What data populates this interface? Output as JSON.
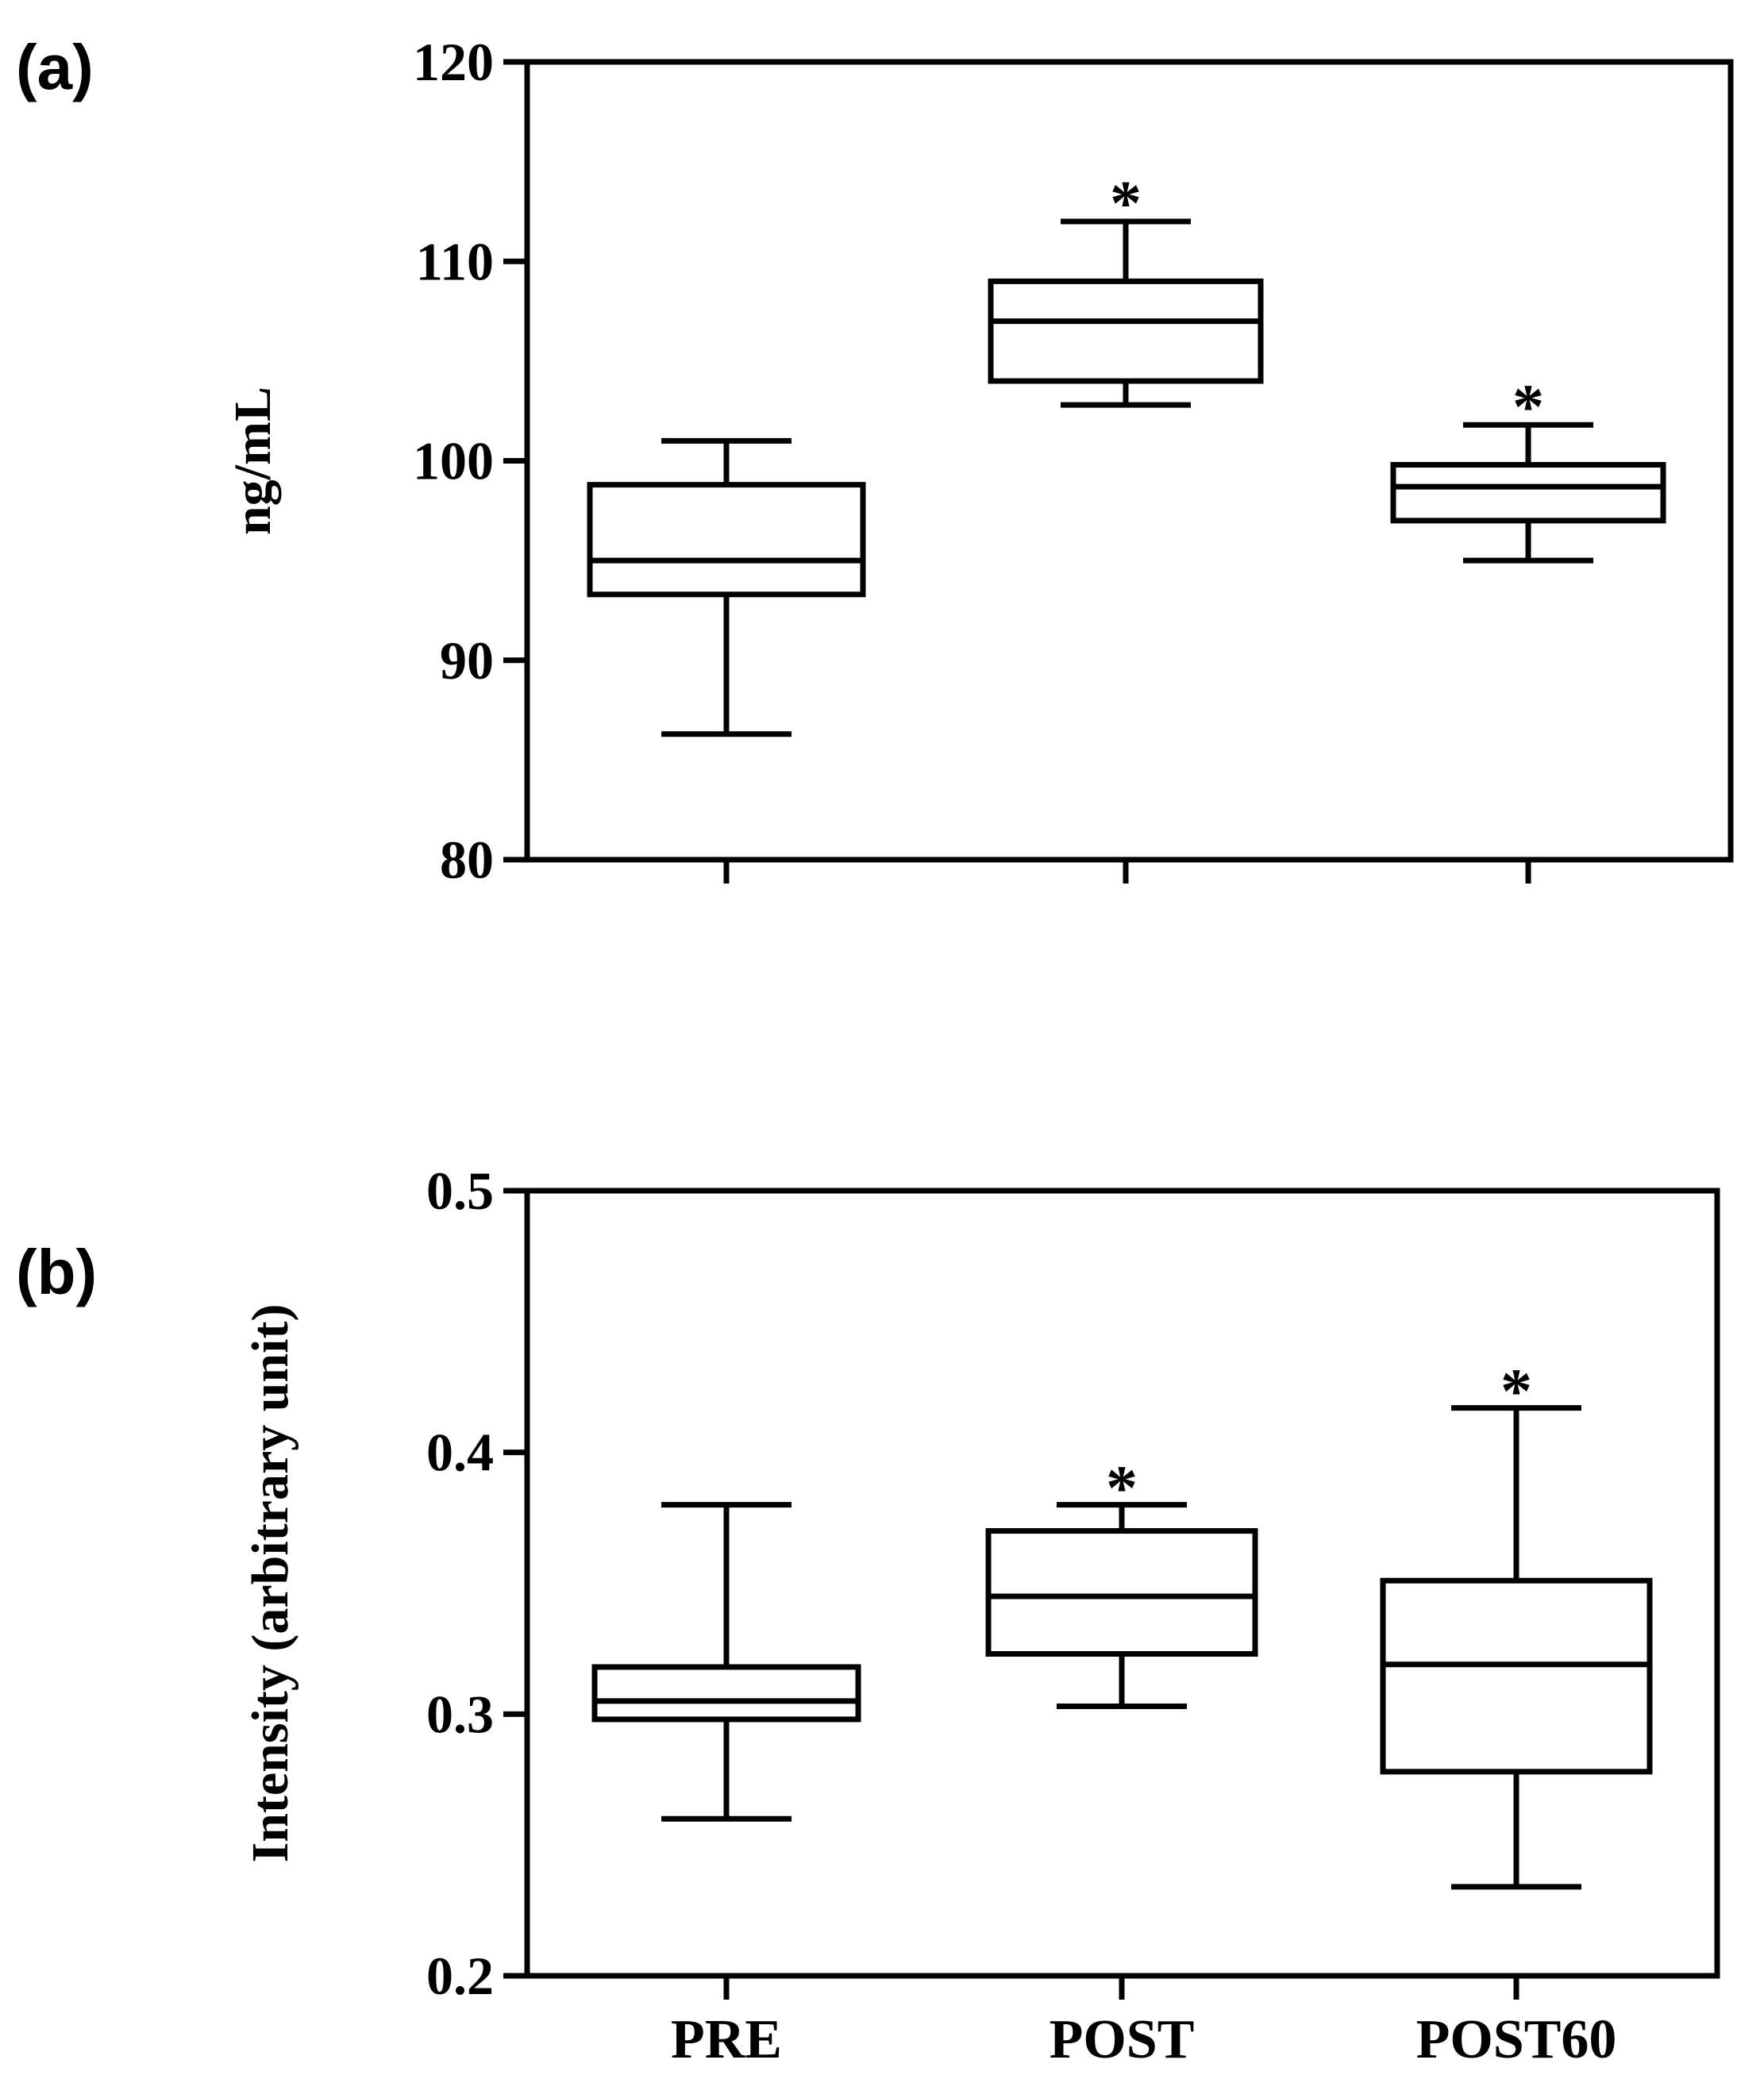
{
  "chart_data": [
    {
      "panel_label": "(a)",
      "type": "boxplot",
      "ylabel": "ng/mL",
      "xlabel": "",
      "ylim": [
        80,
        120
      ],
      "yticks": [
        80,
        90,
        100,
        110,
        120
      ],
      "categories": [
        "PRE",
        "POST",
        "POST60"
      ],
      "show_category_labels": false,
      "grid": false,
      "boxes": [
        {
          "category": "PRE",
          "whisker_low": 86.3,
          "q1": 93.3,
          "median": 95.0,
          "q3": 98.8,
          "whisker_high": 101.0,
          "significance": ""
        },
        {
          "category": "POST",
          "whisker_low": 102.8,
          "q1": 104.0,
          "median": 107.0,
          "q3": 109.0,
          "whisker_high": 112.0,
          "significance": "*"
        },
        {
          "category": "POST60",
          "whisker_low": 95.0,
          "q1": 97.0,
          "median": 98.7,
          "q3": 99.8,
          "whisker_high": 101.8,
          "significance": "*"
        }
      ]
    },
    {
      "panel_label": "(b)",
      "type": "boxplot",
      "ylabel": "Intensity (arbitrary unit)",
      "xlabel": "",
      "ylim": [
        0.2,
        0.5
      ],
      "yticks": [
        0.2,
        0.3,
        0.4,
        0.5
      ],
      "categories": [
        "PRE",
        "POST",
        "POST60"
      ],
      "show_category_labels": true,
      "grid": false,
      "boxes": [
        {
          "category": "PRE",
          "whisker_low": 0.26,
          "q1": 0.298,
          "median": 0.305,
          "q3": 0.318,
          "whisker_high": 0.38,
          "significance": ""
        },
        {
          "category": "POST",
          "whisker_low": 0.303,
          "q1": 0.323,
          "median": 0.345,
          "q3": 0.37,
          "whisker_high": 0.38,
          "significance": "*"
        },
        {
          "category": "POST60",
          "whisker_low": 0.234,
          "q1": 0.278,
          "median": 0.319,
          "q3": 0.351,
          "whisker_high": 0.417,
          "significance": "*"
        }
      ]
    }
  ]
}
